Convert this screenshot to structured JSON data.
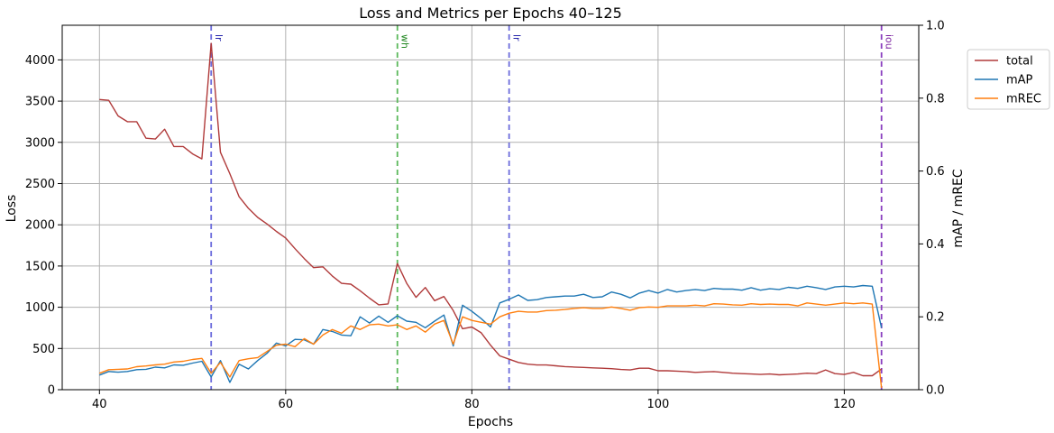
{
  "chart_data": {
    "type": "line",
    "title": "Loss and Metrics per Epochs 40–125",
    "xlabel": "Epochs",
    "ylabel_left": "Loss",
    "ylabel_right": "mAP / mREC",
    "xlim": [
      36,
      128
    ],
    "ylim_left": [
      0,
      4420
    ],
    "ylim_right": [
      0,
      1.0
    ],
    "x_ticks": [
      40,
      60,
      80,
      100,
      120
    ],
    "y_ticks_left": [
      0,
      500,
      1000,
      1500,
      2000,
      2500,
      3000,
      3500,
      4000
    ],
    "y_ticks_right": [
      0.0,
      0.2,
      0.4,
      0.6,
      0.8,
      1.0
    ],
    "grid": true,
    "legend_position": "outside-top-right",
    "x": [
      40,
      41,
      42,
      43,
      44,
      45,
      46,
      47,
      48,
      49,
      50,
      51,
      52,
      53,
      54,
      55,
      56,
      57,
      58,
      59,
      60,
      61,
      62,
      63,
      64,
      65,
      66,
      67,
      68,
      69,
      70,
      71,
      72,
      73,
      74,
      75,
      76,
      77,
      78,
      79,
      80,
      81,
      82,
      83,
      84,
      85,
      86,
      87,
      88,
      89,
      90,
      91,
      92,
      93,
      94,
      95,
      96,
      97,
      98,
      99,
      100,
      101,
      102,
      103,
      104,
      105,
      106,
      107,
      108,
      109,
      110,
      111,
      112,
      113,
      114,
      115,
      116,
      117,
      118,
      119,
      120,
      121,
      122,
      123,
      124
    ],
    "series": [
      {
        "name": "total",
        "axis": "left",
        "color": "#b03a3a",
        "values": [
          3520,
          3510,
          3320,
          3250,
          3250,
          3050,
          3040,
          3160,
          2950,
          2950,
          2860,
          2800,
          4200,
          2880,
          2620,
          2340,
          2200,
          2090,
          2010,
          1920,
          1840,
          1710,
          1590,
          1480,
          1490,
          1380,
          1290,
          1280,
          1200,
          1110,
          1030,
          1040,
          1530,
          1290,
          1120,
          1240,
          1080,
          1130,
          960,
          740,
          760,
          690,
          540,
          410,
          370,
          330,
          310,
          300,
          300,
          290,
          280,
          275,
          270,
          265,
          260,
          255,
          245,
          240,
          260,
          260,
          230,
          230,
          225,
          220,
          210,
          215,
          220,
          210,
          200,
          195,
          190,
          185,
          190,
          180,
          185,
          190,
          200,
          195,
          240,
          195,
          185,
          210,
          170,
          170,
          250
        ]
      },
      {
        "name": "mAP",
        "axis": "right",
        "color": "#1f77b4",
        "values": [
          0.04,
          0.05,
          0.048,
          0.05,
          0.055,
          0.056,
          0.062,
          0.06,
          0.068,
          0.067,
          0.073,
          0.078,
          0.035,
          0.08,
          0.02,
          0.07,
          0.057,
          0.08,
          0.1,
          0.128,
          0.12,
          0.138,
          0.137,
          0.125,
          0.165,
          0.16,
          0.15,
          0.148,
          0.2,
          0.183,
          0.202,
          0.185,
          0.203,
          0.188,
          0.185,
          0.17,
          0.188,
          0.205,
          0.12,
          0.232,
          0.215,
          0.195,
          0.172,
          0.238,
          0.248,
          0.26,
          0.245,
          0.247,
          0.253,
          0.255,
          0.257,
          0.257,
          0.262,
          0.253,
          0.255,
          0.268,
          0.262,
          0.252,
          0.265,
          0.272,
          0.265,
          0.275,
          0.268,
          0.272,
          0.275,
          0.272,
          0.278,
          0.276,
          0.276,
          0.273,
          0.28,
          0.273,
          0.277,
          0.275,
          0.281,
          0.278,
          0.284,
          0.28,
          0.275,
          0.282,
          0.284,
          0.282,
          0.286,
          0.284,
          0.17
        ]
      },
      {
        "name": "mREC",
        "axis": "right",
        "color": "#ff7f0e",
        "values": [
          0.045,
          0.055,
          0.056,
          0.057,
          0.063,
          0.065,
          0.068,
          0.07,
          0.076,
          0.078,
          0.083,
          0.086,
          0.045,
          0.075,
          0.035,
          0.08,
          0.085,
          0.088,
          0.105,
          0.122,
          0.125,
          0.118,
          0.14,
          0.125,
          0.15,
          0.165,
          0.155,
          0.175,
          0.165,
          0.178,
          0.18,
          0.175,
          0.178,
          0.165,
          0.175,
          0.158,
          0.18,
          0.19,
          0.125,
          0.2,
          0.19,
          0.185,
          0.18,
          0.2,
          0.21,
          0.215,
          0.213,
          0.213,
          0.217,
          0.218,
          0.22,
          0.223,
          0.225,
          0.223,
          0.223,
          0.227,
          0.223,
          0.218,
          0.225,
          0.227,
          0.226,
          0.23,
          0.23,
          0.23,
          0.232,
          0.23,
          0.236,
          0.235,
          0.233,
          0.232,
          0.236,
          0.234,
          0.235,
          0.234,
          0.234,
          0.23,
          0.238,
          0.235,
          0.232,
          0.235,
          0.238,
          0.236,
          0.238,
          0.235,
          0.005
        ]
      }
    ],
    "vlines": [
      {
        "x": 52,
        "label": "lr",
        "color": "#6b6bdc",
        "text_color": "#2222aa"
      },
      {
        "x": 72,
        "label": "wh",
        "color": "#5cb85c",
        "text_color": "#228822"
      },
      {
        "x": 84,
        "label": "lr",
        "color": "#6b6bdc",
        "text_color": "#2222aa"
      },
      {
        "x": 124,
        "label": "iou",
        "color": "#8a3fbf",
        "text_color": "#7a1f9f"
      }
    ]
  }
}
